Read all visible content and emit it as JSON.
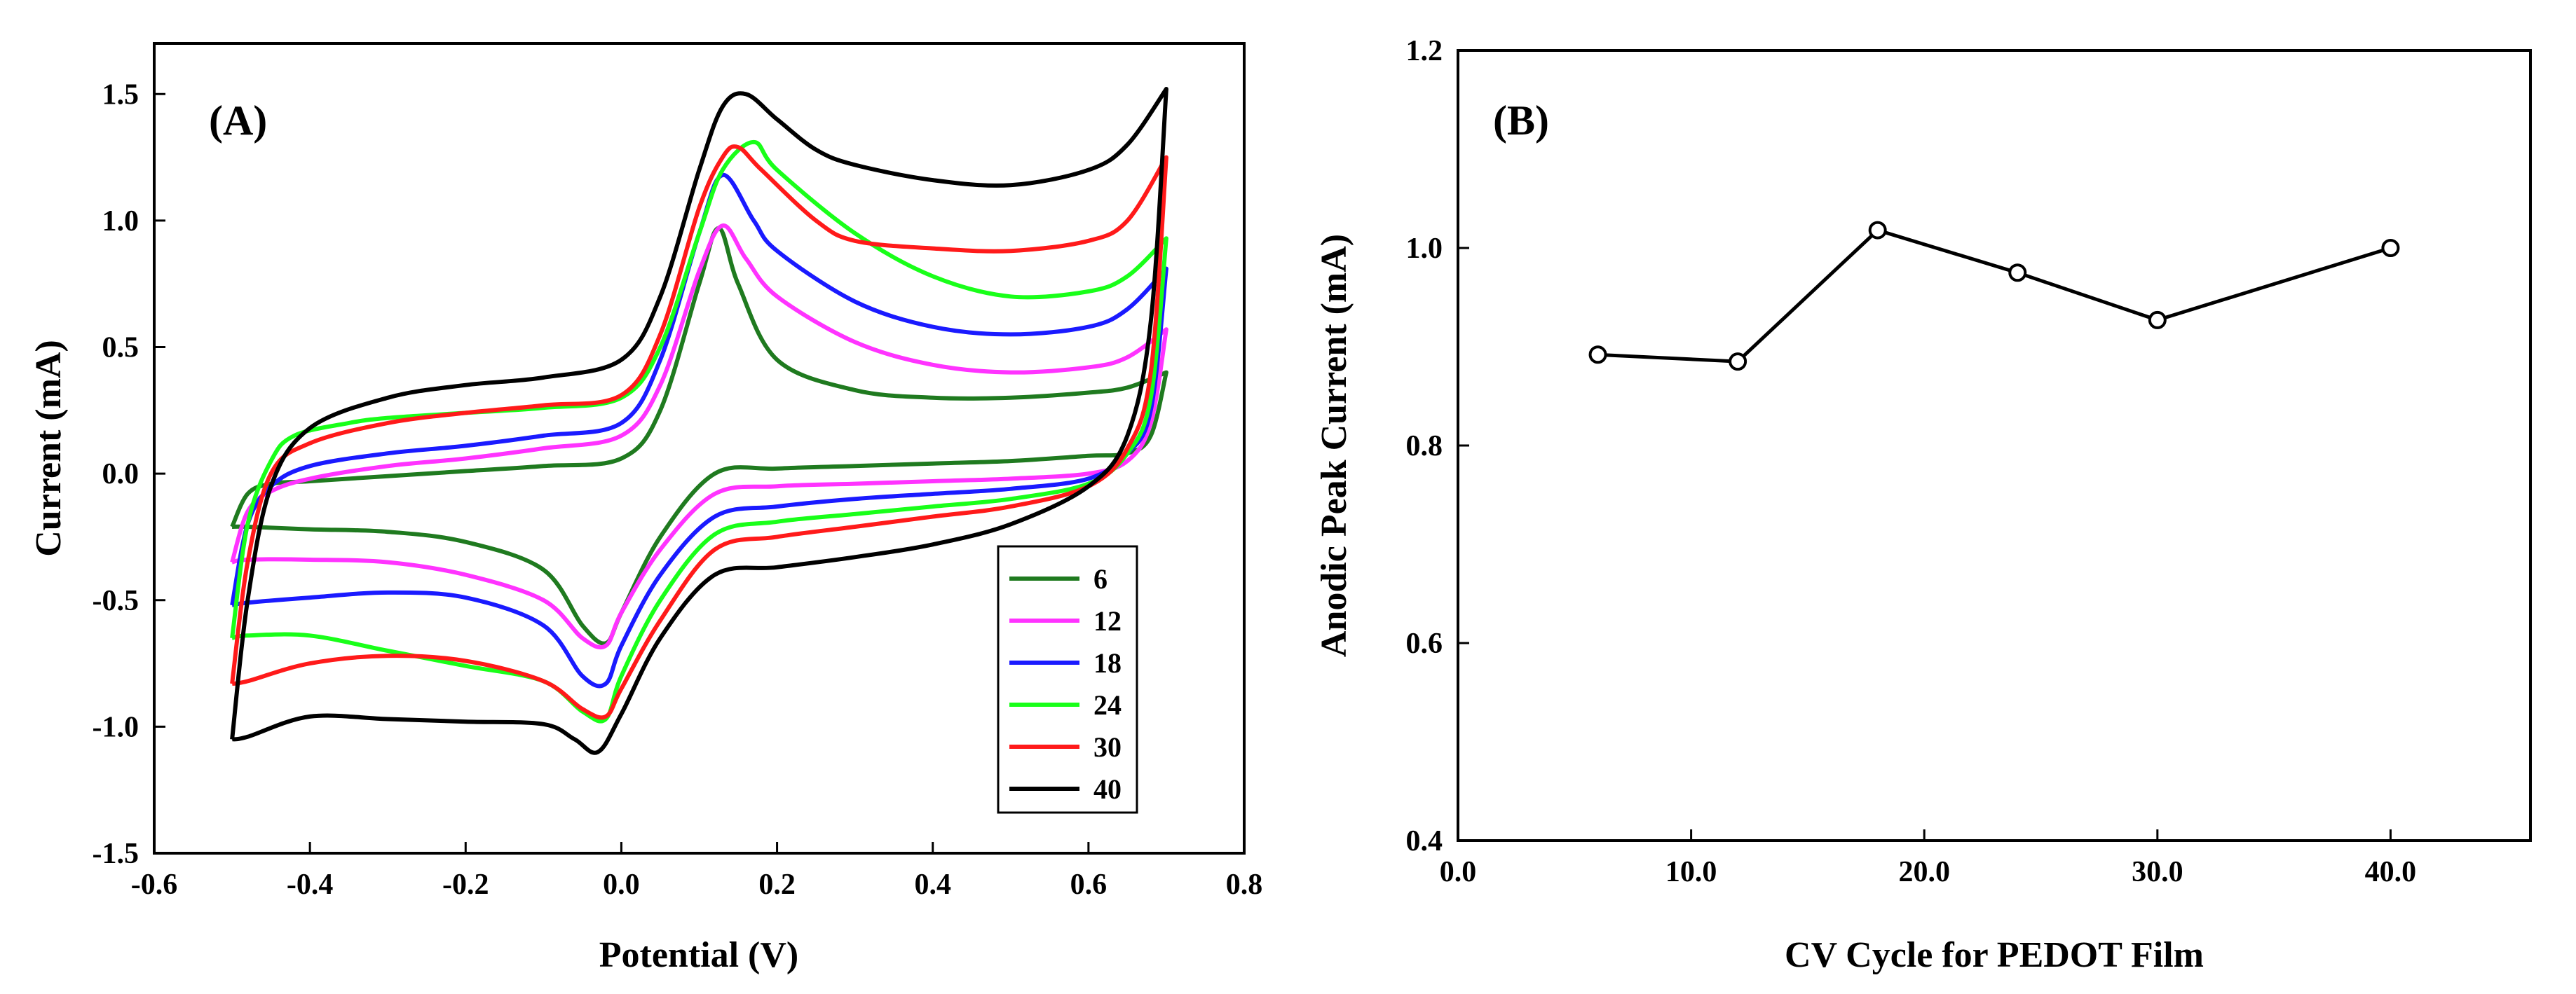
{
  "chart_data": [
    {
      "type": "line",
      "panel_label": "(A)",
      "xlabel": "Potential (V)",
      "ylabel": "Current (mA)",
      "xlim": [
        -0.6,
        0.8
      ],
      "ylim": [
        -1.5,
        1.7
      ],
      "x_ticks": [
        -0.6,
        -0.4,
        -0.2,
        0.0,
        0.2,
        0.4,
        0.6,
        0.8
      ],
      "x_tick_labels": [
        "-0.6",
        "-0.4",
        "-0.2",
        "0.0",
        "0.2",
        "0.4",
        "0.6",
        "0.8"
      ],
      "y_ticks": [
        -1.5,
        -1.0,
        -0.5,
        0.0,
        0.5,
        1.0,
        1.5
      ],
      "y_tick_labels": [
        "-1.5",
        "-1.0",
        "-0.5",
        "0.0",
        "0.5",
        "1.0",
        "1.5"
      ],
      "legend_position": "bottom-right",
      "series": [
        {
          "name": "6",
          "color": "#1f7a1f",
          "E_start": -0.5,
          "E_end": 0.7,
          "I_end": 0.4,
          "forward": [
            [
              -0.5,
              -0.21
            ],
            [
              -0.48,
              -0.08
            ],
            [
              -0.45,
              -0.04
            ],
            [
              -0.4,
              -0.03
            ],
            [
              -0.3,
              -0.01
            ],
            [
              -0.2,
              0.01
            ],
            [
              -0.1,
              0.03
            ],
            [
              0.0,
              0.06
            ],
            [
              0.05,
              0.25
            ],
            [
              0.1,
              0.75
            ],
            [
              0.125,
              0.97
            ],
            [
              0.15,
              0.75
            ],
            [
              0.2,
              0.45
            ],
            [
              0.3,
              0.33
            ],
            [
              0.4,
              0.3
            ],
            [
              0.5,
              0.3
            ],
            [
              0.6,
              0.32
            ],
            [
              0.65,
              0.34
            ],
            [
              0.7,
              0.4
            ]
          ],
          "reverse": [
            [
              0.7,
              0.4
            ],
            [
              0.68,
              0.15
            ],
            [
              0.65,
              0.08
            ],
            [
              0.6,
              0.07
            ],
            [
              0.5,
              0.05
            ],
            [
              0.4,
              0.04
            ],
            [
              0.3,
              0.03
            ],
            [
              0.2,
              0.02
            ],
            [
              0.12,
              0.0
            ],
            [
              0.05,
              -0.25
            ],
            [
              0.0,
              -0.55
            ],
            [
              -0.02,
              -0.67
            ],
            [
              -0.05,
              -0.6
            ],
            [
              -0.1,
              -0.38
            ],
            [
              -0.2,
              -0.27
            ],
            [
              -0.3,
              -0.23
            ],
            [
              -0.4,
              -0.22
            ],
            [
              -0.48,
              -0.21
            ],
            [
              -0.5,
              -0.21
            ]
          ]
        },
        {
          "name": "12",
          "color": "#ff33ff",
          "E_start": -0.5,
          "E_end": 0.7,
          "I_end": 0.57,
          "forward": [
            [
              -0.5,
              -0.35
            ],
            [
              -0.48,
              -0.15
            ],
            [
              -0.45,
              -0.07
            ],
            [
              -0.4,
              -0.02
            ],
            [
              -0.3,
              0.03
            ],
            [
              -0.2,
              0.06
            ],
            [
              -0.1,
              0.1
            ],
            [
              0.0,
              0.15
            ],
            [
              0.05,
              0.35
            ],
            [
              0.1,
              0.8
            ],
            [
              0.13,
              0.98
            ],
            [
              0.16,
              0.85
            ],
            [
              0.2,
              0.7
            ],
            [
              0.3,
              0.52
            ],
            [
              0.4,
              0.43
            ],
            [
              0.5,
              0.4
            ],
            [
              0.6,
              0.42
            ],
            [
              0.65,
              0.46
            ],
            [
              0.7,
              0.57
            ]
          ],
          "reverse": [
            [
              0.7,
              0.57
            ],
            [
              0.68,
              0.2
            ],
            [
              0.65,
              0.05
            ],
            [
              0.6,
              0.0
            ],
            [
              0.5,
              -0.02
            ],
            [
              0.4,
              -0.03
            ],
            [
              0.3,
              -0.04
            ],
            [
              0.2,
              -0.05
            ],
            [
              0.12,
              -0.08
            ],
            [
              0.05,
              -0.3
            ],
            [
              0.0,
              -0.55
            ],
            [
              -0.02,
              -0.68
            ],
            [
              -0.05,
              -0.65
            ],
            [
              -0.1,
              -0.5
            ],
            [
              -0.2,
              -0.4
            ],
            [
              -0.3,
              -0.35
            ],
            [
              -0.4,
              -0.34
            ],
            [
              -0.48,
              -0.34
            ],
            [
              -0.5,
              -0.35
            ]
          ]
        },
        {
          "name": "18",
          "color": "#1a1aff",
          "E_start": -0.5,
          "E_end": 0.7,
          "I_end": 0.81,
          "forward": [
            [
              -0.5,
              -0.52
            ],
            [
              -0.48,
              -0.2
            ],
            [
              -0.45,
              -0.05
            ],
            [
              -0.4,
              0.03
            ],
            [
              -0.3,
              0.08
            ],
            [
              -0.2,
              0.11
            ],
            [
              -0.1,
              0.15
            ],
            [
              0.0,
              0.2
            ],
            [
              0.05,
              0.45
            ],
            [
              0.1,
              0.95
            ],
            [
              0.13,
              1.18
            ],
            [
              0.17,
              1.0
            ],
            [
              0.2,
              0.88
            ],
            [
              0.3,
              0.68
            ],
            [
              0.4,
              0.58
            ],
            [
              0.5,
              0.55
            ],
            [
              0.6,
              0.58
            ],
            [
              0.65,
              0.65
            ],
            [
              0.7,
              0.81
            ]
          ],
          "reverse": [
            [
              0.7,
              0.81
            ],
            [
              0.68,
              0.25
            ],
            [
              0.65,
              0.08
            ],
            [
              0.6,
              -0.02
            ],
            [
              0.5,
              -0.06
            ],
            [
              0.4,
              -0.08
            ],
            [
              0.3,
              -0.1
            ],
            [
              0.2,
              -0.13
            ],
            [
              0.12,
              -0.17
            ],
            [
              0.05,
              -0.4
            ],
            [
              0.0,
              -0.68
            ],
            [
              -0.02,
              -0.83
            ],
            [
              -0.05,
              -0.8
            ],
            [
              -0.1,
              -0.6
            ],
            [
              -0.2,
              -0.49
            ],
            [
              -0.3,
              -0.47
            ],
            [
              -0.4,
              -0.49
            ],
            [
              -0.48,
              -0.51
            ],
            [
              -0.5,
              -0.52
            ]
          ]
        },
        {
          "name": "24",
          "color": "#19ff19",
          "E_start": -0.5,
          "E_end": 0.7,
          "I_end": 0.93,
          "forward": [
            [
              -0.5,
              -0.65
            ],
            [
              -0.48,
              -0.2
            ],
            [
              -0.45,
              0.05
            ],
            [
              -0.42,
              0.15
            ],
            [
              -0.35,
              0.2
            ],
            [
              -0.3,
              0.22
            ],
            [
              -0.2,
              0.24
            ],
            [
              -0.1,
              0.26
            ],
            [
              0.0,
              0.3
            ],
            [
              0.05,
              0.5
            ],
            [
              0.1,
              0.95
            ],
            [
              0.13,
              1.2
            ],
            [
              0.17,
              1.31
            ],
            [
              0.2,
              1.2
            ],
            [
              0.3,
              0.95
            ],
            [
              0.4,
              0.78
            ],
            [
              0.5,
              0.7
            ],
            [
              0.6,
              0.72
            ],
            [
              0.65,
              0.78
            ],
            [
              0.7,
              0.93
            ]
          ],
          "reverse": [
            [
              0.7,
              0.93
            ],
            [
              0.68,
              0.3
            ],
            [
              0.65,
              0.08
            ],
            [
              0.6,
              -0.04
            ],
            [
              0.5,
              -0.1
            ],
            [
              0.4,
              -0.13
            ],
            [
              0.3,
              -0.16
            ],
            [
              0.2,
              -0.19
            ],
            [
              0.12,
              -0.24
            ],
            [
              0.05,
              -0.5
            ],
            [
              0.0,
              -0.8
            ],
            [
              -0.02,
              -0.97
            ],
            [
              -0.05,
              -0.94
            ],
            [
              -0.1,
              -0.82
            ],
            [
              -0.2,
              -0.76
            ],
            [
              -0.3,
              -0.7
            ],
            [
              -0.4,
              -0.64
            ],
            [
              -0.48,
              -0.64
            ],
            [
              -0.5,
              -0.65
            ]
          ]
        },
        {
          "name": "30",
          "color": "#ff1a1a",
          "E_start": -0.5,
          "E_end": 0.7,
          "I_end": 1.25,
          "forward": [
            [
              -0.5,
              -0.83
            ],
            [
              -0.48,
              -0.35
            ],
            [
              -0.45,
              0.0
            ],
            [
              -0.4,
              0.12
            ],
            [
              -0.3,
              0.2
            ],
            [
              -0.2,
              0.24
            ],
            [
              -0.1,
              0.27
            ],
            [
              0.0,
              0.31
            ],
            [
              0.05,
              0.55
            ],
            [
              0.1,
              1.05
            ],
            [
              0.13,
              1.25
            ],
            [
              0.15,
              1.29
            ],
            [
              0.18,
              1.2
            ],
            [
              0.25,
              1.0
            ],
            [
              0.3,
              0.92
            ],
            [
              0.4,
              0.89
            ],
            [
              0.5,
              0.88
            ],
            [
              0.6,
              0.92
            ],
            [
              0.65,
              1.0
            ],
            [
              0.7,
              1.25
            ]
          ],
          "reverse": [
            [
              0.7,
              1.25
            ],
            [
              0.68,
              0.4
            ],
            [
              0.65,
              0.1
            ],
            [
              0.6,
              -0.05
            ],
            [
              0.5,
              -0.13
            ],
            [
              0.4,
              -0.17
            ],
            [
              0.3,
              -0.21
            ],
            [
              0.2,
              -0.25
            ],
            [
              0.12,
              -0.3
            ],
            [
              0.05,
              -0.58
            ],
            [
              0.0,
              -0.85
            ],
            [
              -0.02,
              -0.96
            ],
            [
              -0.05,
              -0.93
            ],
            [
              -0.1,
              -0.82
            ],
            [
              -0.2,
              -0.74
            ],
            [
              -0.3,
              -0.72
            ],
            [
              -0.4,
              -0.75
            ],
            [
              -0.48,
              -0.82
            ],
            [
              -0.5,
              -0.83
            ]
          ]
        },
        {
          "name": "40",
          "color": "#000000",
          "E_start": -0.5,
          "E_end": 0.7,
          "I_end": 1.52,
          "forward": [
            [
              -0.5,
              -1.05
            ],
            [
              -0.48,
              -0.5
            ],
            [
              -0.45,
              -0.05
            ],
            [
              -0.4,
              0.18
            ],
            [
              -0.3,
              0.3
            ],
            [
              -0.2,
              0.35
            ],
            [
              -0.1,
              0.38
            ],
            [
              0.0,
              0.45
            ],
            [
              0.05,
              0.7
            ],
            [
              0.1,
              1.2
            ],
            [
              0.13,
              1.45
            ],
            [
              0.16,
              1.5
            ],
            [
              0.2,
              1.4
            ],
            [
              0.25,
              1.28
            ],
            [
              0.3,
              1.22
            ],
            [
              0.4,
              1.16
            ],
            [
              0.5,
              1.14
            ],
            [
              0.6,
              1.2
            ],
            [
              0.65,
              1.3
            ],
            [
              0.7,
              1.52
            ]
          ],
          "reverse": [
            [
              0.7,
              1.52
            ],
            [
              0.68,
              0.6
            ],
            [
              0.65,
              0.15
            ],
            [
              0.6,
              -0.05
            ],
            [
              0.5,
              -0.2
            ],
            [
              0.4,
              -0.28
            ],
            [
              0.3,
              -0.33
            ],
            [
              0.2,
              -0.37
            ],
            [
              0.12,
              -0.4
            ],
            [
              0.05,
              -0.65
            ],
            [
              0.0,
              -0.95
            ],
            [
              -0.03,
              -1.1
            ],
            [
              -0.06,
              -1.05
            ],
            [
              -0.1,
              -0.99
            ],
            [
              -0.2,
              -0.98
            ],
            [
              -0.3,
              -0.97
            ],
            [
              -0.4,
              -0.96
            ],
            [
              -0.48,
              -1.04
            ],
            [
              -0.5,
              -1.05
            ]
          ]
        }
      ]
    },
    {
      "type": "line",
      "panel_label": "(B)",
      "xlabel": "CV Cycle for PEDOT Film",
      "ylabel": "Anodic Peak Current (mA)",
      "xlim": [
        0,
        46
      ],
      "ylim": [
        0.4,
        1.2
      ],
      "x_ticks": [
        0,
        10,
        20,
        30,
        40
      ],
      "x_tick_labels": [
        "0.0",
        "10.0",
        "20.0",
        "30.0",
        "40.0"
      ],
      "y_ticks": [
        0.4,
        0.6,
        0.8,
        1.0,
        1.2
      ],
      "y_tick_labels": [
        "0.4",
        "0.6",
        "0.8",
        "1.0",
        "1.2"
      ],
      "series": [
        {
          "name": "Anodic peak current",
          "color": "#000000",
          "x": [
            6,
            12,
            18,
            24,
            30,
            40
          ],
          "y": [
            0.892,
            0.885,
            1.018,
            0.975,
            0.927,
            1.0
          ]
        }
      ]
    }
  ]
}
